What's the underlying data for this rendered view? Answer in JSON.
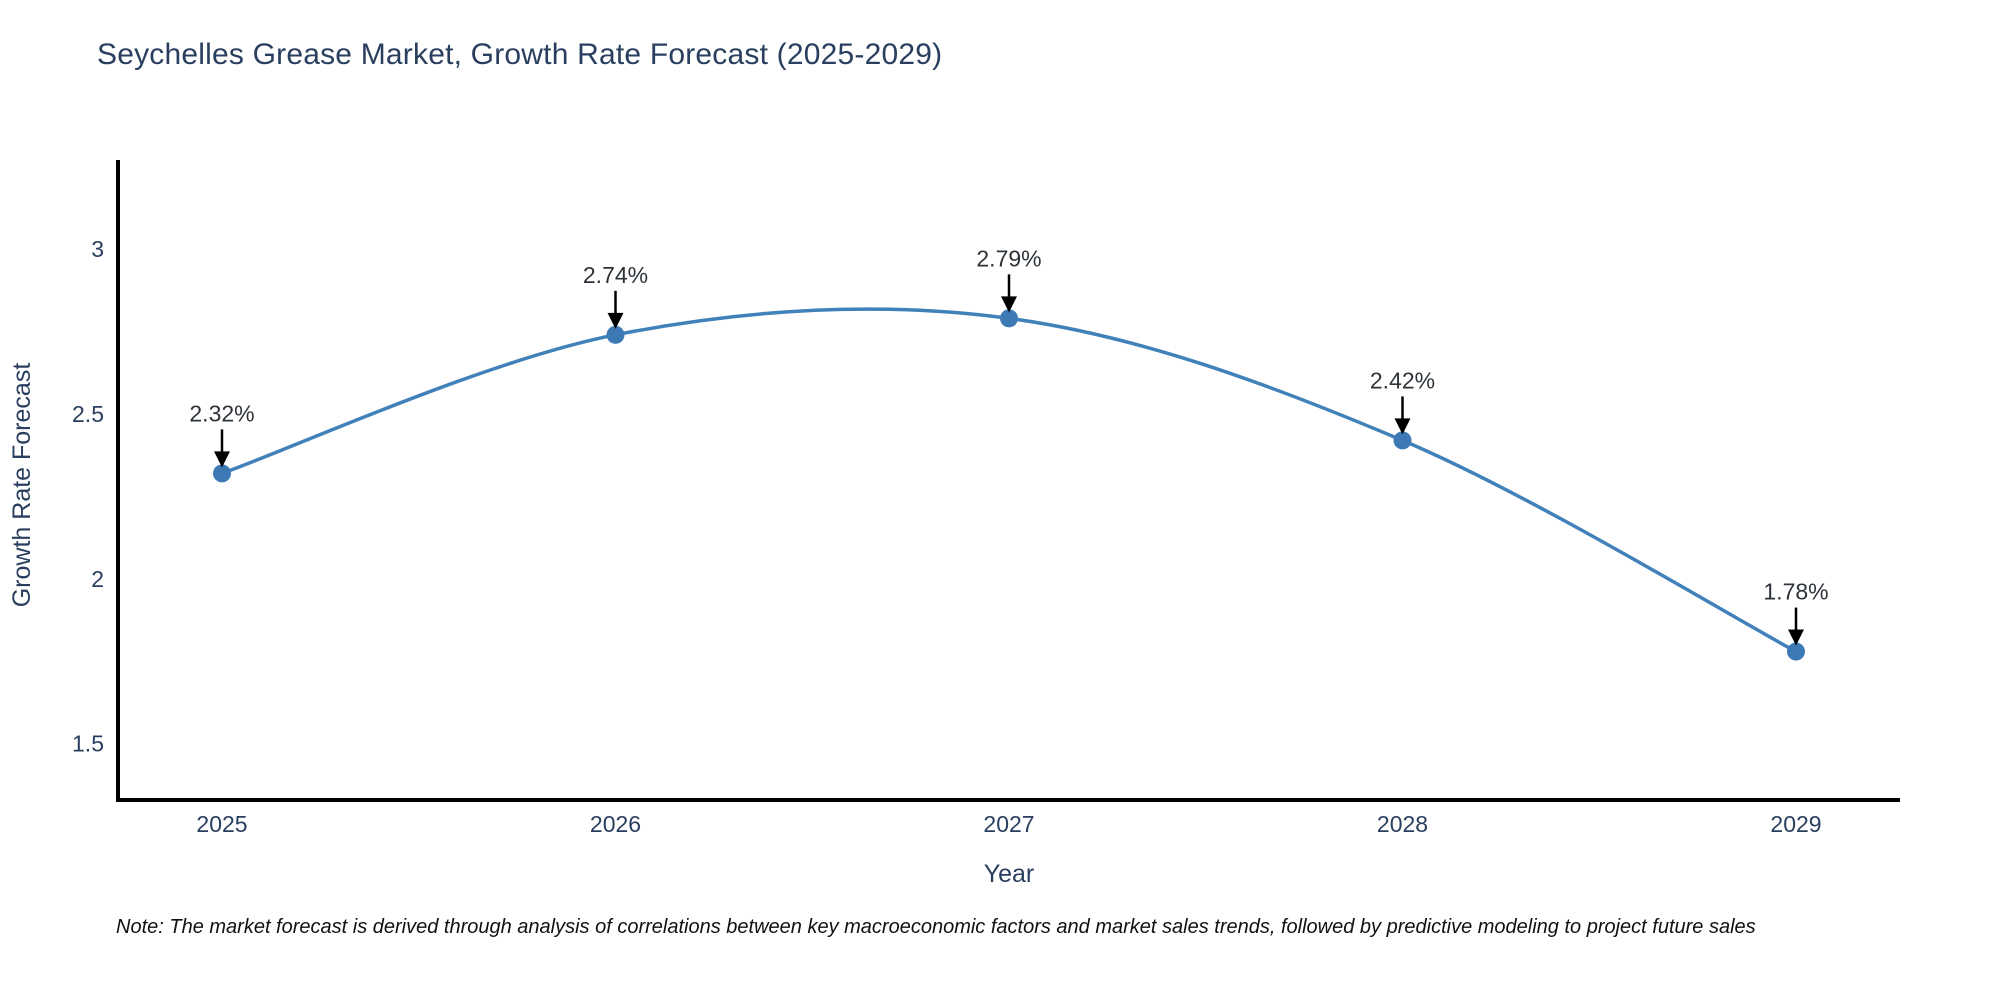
{
  "title": "Seychelles Grease Market, Growth Rate Forecast (2025-2029)",
  "note": "Note: The market forecast is derived through analysis of correlations between key macroeconomic factors and market sales trends, followed by predictive modeling to project future sales",
  "chart_data": {
    "type": "line",
    "title": "Seychelles Grease Market, Growth Rate Forecast (2025-2029)",
    "categories": [
      "2025",
      "2026",
      "2027",
      "2028",
      "2029"
    ],
    "values": [
      2.32,
      2.74,
      2.79,
      2.42,
      1.78
    ],
    "point_labels": [
      "2.32%",
      "2.74%",
      "2.79%",
      "2.42%",
      "1.78%"
    ],
    "xlabel": "Year",
    "ylabel": "Growth Rate Forecast",
    "yticks": [
      1.5,
      2,
      2.5,
      3
    ],
    "ytick_labels": [
      "1.5",
      "2",
      "2.5",
      "3"
    ],
    "ylim": [
      1.33,
      3.27
    ],
    "line_shape": "spline",
    "grid": false,
    "legend": "none",
    "annotation_style": "label-above-with-down-arrow",
    "colors": {
      "line": "#4181ba",
      "marker": "#3c79b5",
      "axis": "#000000",
      "tick_text": "#2a3f5f",
      "axis_title_text": "#2a3f5f",
      "title_text": "#2a3f5f",
      "annotation_text": "#2d3339",
      "arrow": "#000000",
      "note_text": "#111111",
      "background": "#ffffff"
    }
  }
}
